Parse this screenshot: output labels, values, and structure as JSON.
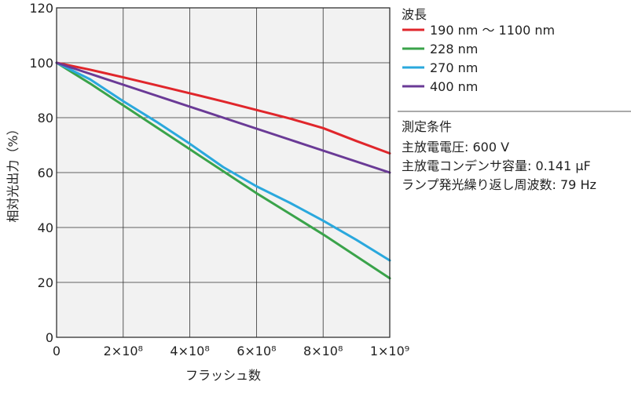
{
  "chart_data": {
    "type": "line",
    "xlabel": "フラッシュ数",
    "ylabel": "相対光出力（%）",
    "xlim": [
      0,
      1000000000
    ],
    "ylim": [
      0,
      120
    ],
    "x_ticks": [
      {
        "value": 0,
        "label": "0"
      },
      {
        "value": 200000000,
        "label": "2×10⁸"
      },
      {
        "value": 400000000,
        "label": "4×10⁸"
      },
      {
        "value": 600000000,
        "label": "6×10⁸"
      },
      {
        "value": 800000000,
        "label": "8×10⁸"
      },
      {
        "value": 1000000000,
        "label": "1×10⁹"
      }
    ],
    "y_ticks": [
      0,
      20,
      40,
      60,
      80,
      100,
      120
    ],
    "grid": true,
    "legend_position": "right",
    "legend_title": "波長",
    "series": [
      {
        "name": "190 nm ～ 1100 nm",
        "color": "#e0262b",
        "x": [
          0,
          100000000,
          200000000,
          300000000,
          400000000,
          500000000,
          600000000,
          700000000,
          800000000,
          900000000,
          1000000000
        ],
        "y": [
          100,
          97.5,
          94.7,
          91.8,
          88.9,
          85.9,
          82.8,
          79.7,
          76.2,
          71.5,
          67
        ]
      },
      {
        "name": "228 nm",
        "color": "#3aa34a",
        "x": [
          0,
          100000000,
          200000000,
          300000000,
          400000000,
          500000000,
          600000000,
          700000000,
          800000000,
          900000000,
          1000000000
        ],
        "y": [
          100,
          92.5,
          84.5,
          76.5,
          68.5,
          60.5,
          52.5,
          45,
          37.5,
          29.5,
          21.5
        ]
      },
      {
        "name": "270 nm",
        "color": "#2aa8dd",
        "x": [
          0,
          100000000,
          200000000,
          300000000,
          400000000,
          500000000,
          600000000,
          700000000,
          800000000,
          900000000,
          1000000000
        ],
        "y": [
          100,
          94,
          86,
          78.5,
          70.5,
          62,
          55,
          49,
          42.5,
          35.5,
          28
        ]
      },
      {
        "name": "400 nm",
        "color": "#6a3a96",
        "x": [
          0,
          100000000,
          200000000,
          300000000,
          400000000,
          500000000,
          600000000,
          700000000,
          800000000,
          900000000,
          1000000000
        ],
        "y": [
          100,
          96,
          92,
          88,
          84,
          80,
          76,
          72,
          68,
          64,
          60
        ]
      }
    ],
    "conditions_title": "測定条件",
    "conditions": [
      "主放電電圧: 600 V",
      "主放電コンデンサ容量: 0.141 μF",
      "ランプ発光繰り返し周波数: 79 Hz"
    ]
  }
}
